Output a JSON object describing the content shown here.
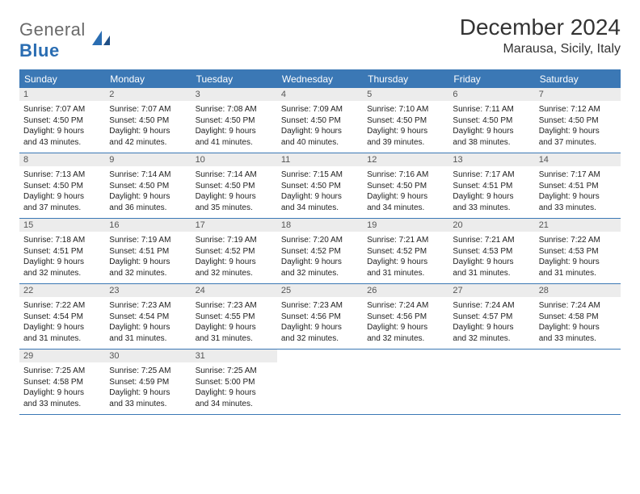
{
  "logo": {
    "word1": "General",
    "word2": "Blue"
  },
  "title": "December 2024",
  "location": "Marausa, Sicily, Italy",
  "colors": {
    "header_bg": "#3b78b5",
    "header_text": "#ffffff",
    "daynum_bg": "#ececec",
    "border": "#3b78b5",
    "logo_gray": "#6a6a6a",
    "logo_blue": "#2a6db2"
  },
  "dow": [
    "Sunday",
    "Monday",
    "Tuesday",
    "Wednesday",
    "Thursday",
    "Friday",
    "Saturday"
  ],
  "days": [
    {
      "n": "1",
      "sr": "Sunrise: 7:07 AM",
      "ss": "Sunset: 4:50 PM",
      "d1": "Daylight: 9 hours",
      "d2": "and 43 minutes."
    },
    {
      "n": "2",
      "sr": "Sunrise: 7:07 AM",
      "ss": "Sunset: 4:50 PM",
      "d1": "Daylight: 9 hours",
      "d2": "and 42 minutes."
    },
    {
      "n": "3",
      "sr": "Sunrise: 7:08 AM",
      "ss": "Sunset: 4:50 PM",
      "d1": "Daylight: 9 hours",
      "d2": "and 41 minutes."
    },
    {
      "n": "4",
      "sr": "Sunrise: 7:09 AM",
      "ss": "Sunset: 4:50 PM",
      "d1": "Daylight: 9 hours",
      "d2": "and 40 minutes."
    },
    {
      "n": "5",
      "sr": "Sunrise: 7:10 AM",
      "ss": "Sunset: 4:50 PM",
      "d1": "Daylight: 9 hours",
      "d2": "and 39 minutes."
    },
    {
      "n": "6",
      "sr": "Sunrise: 7:11 AM",
      "ss": "Sunset: 4:50 PM",
      "d1": "Daylight: 9 hours",
      "d2": "and 38 minutes."
    },
    {
      "n": "7",
      "sr": "Sunrise: 7:12 AM",
      "ss": "Sunset: 4:50 PM",
      "d1": "Daylight: 9 hours",
      "d2": "and 37 minutes."
    },
    {
      "n": "8",
      "sr": "Sunrise: 7:13 AM",
      "ss": "Sunset: 4:50 PM",
      "d1": "Daylight: 9 hours",
      "d2": "and 37 minutes."
    },
    {
      "n": "9",
      "sr": "Sunrise: 7:14 AM",
      "ss": "Sunset: 4:50 PM",
      "d1": "Daylight: 9 hours",
      "d2": "and 36 minutes."
    },
    {
      "n": "10",
      "sr": "Sunrise: 7:14 AM",
      "ss": "Sunset: 4:50 PM",
      "d1": "Daylight: 9 hours",
      "d2": "and 35 minutes."
    },
    {
      "n": "11",
      "sr": "Sunrise: 7:15 AM",
      "ss": "Sunset: 4:50 PM",
      "d1": "Daylight: 9 hours",
      "d2": "and 34 minutes."
    },
    {
      "n": "12",
      "sr": "Sunrise: 7:16 AM",
      "ss": "Sunset: 4:50 PM",
      "d1": "Daylight: 9 hours",
      "d2": "and 34 minutes."
    },
    {
      "n": "13",
      "sr": "Sunrise: 7:17 AM",
      "ss": "Sunset: 4:51 PM",
      "d1": "Daylight: 9 hours",
      "d2": "and 33 minutes."
    },
    {
      "n": "14",
      "sr": "Sunrise: 7:17 AM",
      "ss": "Sunset: 4:51 PM",
      "d1": "Daylight: 9 hours",
      "d2": "and 33 minutes."
    },
    {
      "n": "15",
      "sr": "Sunrise: 7:18 AM",
      "ss": "Sunset: 4:51 PM",
      "d1": "Daylight: 9 hours",
      "d2": "and 32 minutes."
    },
    {
      "n": "16",
      "sr": "Sunrise: 7:19 AM",
      "ss": "Sunset: 4:51 PM",
      "d1": "Daylight: 9 hours",
      "d2": "and 32 minutes."
    },
    {
      "n": "17",
      "sr": "Sunrise: 7:19 AM",
      "ss": "Sunset: 4:52 PM",
      "d1": "Daylight: 9 hours",
      "d2": "and 32 minutes."
    },
    {
      "n": "18",
      "sr": "Sunrise: 7:20 AM",
      "ss": "Sunset: 4:52 PM",
      "d1": "Daylight: 9 hours",
      "d2": "and 32 minutes."
    },
    {
      "n": "19",
      "sr": "Sunrise: 7:21 AM",
      "ss": "Sunset: 4:52 PM",
      "d1": "Daylight: 9 hours",
      "d2": "and 31 minutes."
    },
    {
      "n": "20",
      "sr": "Sunrise: 7:21 AM",
      "ss": "Sunset: 4:53 PM",
      "d1": "Daylight: 9 hours",
      "d2": "and 31 minutes."
    },
    {
      "n": "21",
      "sr": "Sunrise: 7:22 AM",
      "ss": "Sunset: 4:53 PM",
      "d1": "Daylight: 9 hours",
      "d2": "and 31 minutes."
    },
    {
      "n": "22",
      "sr": "Sunrise: 7:22 AM",
      "ss": "Sunset: 4:54 PM",
      "d1": "Daylight: 9 hours",
      "d2": "and 31 minutes."
    },
    {
      "n": "23",
      "sr": "Sunrise: 7:23 AM",
      "ss": "Sunset: 4:54 PM",
      "d1": "Daylight: 9 hours",
      "d2": "and 31 minutes."
    },
    {
      "n": "24",
      "sr": "Sunrise: 7:23 AM",
      "ss": "Sunset: 4:55 PM",
      "d1": "Daylight: 9 hours",
      "d2": "and 31 minutes."
    },
    {
      "n": "25",
      "sr": "Sunrise: 7:23 AM",
      "ss": "Sunset: 4:56 PM",
      "d1": "Daylight: 9 hours",
      "d2": "and 32 minutes."
    },
    {
      "n": "26",
      "sr": "Sunrise: 7:24 AM",
      "ss": "Sunset: 4:56 PM",
      "d1": "Daylight: 9 hours",
      "d2": "and 32 minutes."
    },
    {
      "n": "27",
      "sr": "Sunrise: 7:24 AM",
      "ss": "Sunset: 4:57 PM",
      "d1": "Daylight: 9 hours",
      "d2": "and 32 minutes."
    },
    {
      "n": "28",
      "sr": "Sunrise: 7:24 AM",
      "ss": "Sunset: 4:58 PM",
      "d1": "Daylight: 9 hours",
      "d2": "and 33 minutes."
    },
    {
      "n": "29",
      "sr": "Sunrise: 7:25 AM",
      "ss": "Sunset: 4:58 PM",
      "d1": "Daylight: 9 hours",
      "d2": "and 33 minutes."
    },
    {
      "n": "30",
      "sr": "Sunrise: 7:25 AM",
      "ss": "Sunset: 4:59 PM",
      "d1": "Daylight: 9 hours",
      "d2": "and 33 minutes."
    },
    {
      "n": "31",
      "sr": "Sunrise: 7:25 AM",
      "ss": "Sunset: 5:00 PM",
      "d1": "Daylight: 9 hours",
      "d2": "and 34 minutes."
    }
  ]
}
